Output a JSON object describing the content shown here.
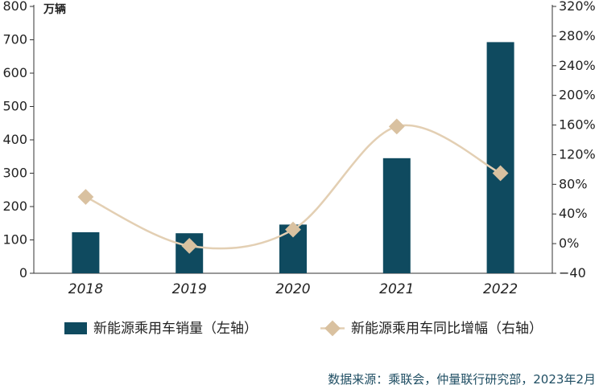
{
  "chart_data": {
    "type": "bar",
    "categories": [
      "2018",
      "2019",
      "2020",
      "2021",
      "2022"
    ],
    "series": [
      {
        "name": "新能源乘用车销量（左轴）",
        "type": "bar",
        "axis": "left",
        "values": [
          123,
          120,
          146,
          345,
          693
        ],
        "color": "#0f4a5f"
      },
      {
        "name": "新能源乘用车同比增幅（右轴）",
        "type": "line",
        "axis": "right",
        "values": [
          63,
          -3,
          19,
          158,
          95
        ],
        "color": "#e3cfb3"
      }
    ],
    "ylabel": "万辆",
    "ylim": [
      0,
      800
    ],
    "yticks": [
      "0",
      "100",
      "200",
      "300",
      "400",
      "500",
      "600",
      "700",
      "800"
    ],
    "y2lim": [
      -40,
      320
    ],
    "y2ticks": [
      "−40",
      "0%",
      "40%",
      "80%",
      "120%",
      "160%",
      "200%",
      "240%",
      "280%",
      "320%"
    ],
    "grid": false,
    "legend_position": "bottom"
  },
  "source": "数据来源：乘联会，仲量联行研究部，2023年2月"
}
